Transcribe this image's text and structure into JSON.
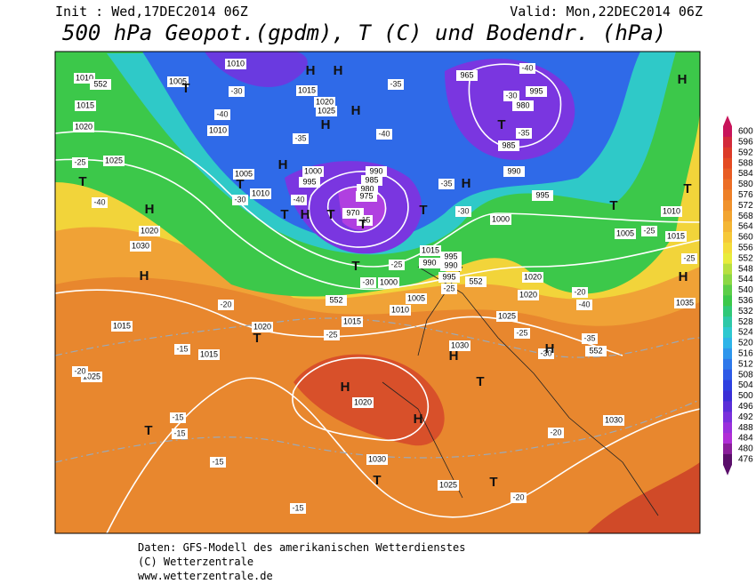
{
  "header": {
    "init": "Init : Wed,17DEC2014 06Z",
    "valid": "Valid: Mon,22DEC2014 06Z",
    "title": "500 hPa Geopot.(gpdm), T (C) und Bodendr. (hPa)"
  },
  "colorbar": {
    "labels": [
      "600",
      "596",
      "592",
      "588",
      "584",
      "580",
      "576",
      "572",
      "568",
      "564",
      "560",
      "556",
      "552",
      "548",
      "544",
      "540",
      "536",
      "532",
      "528",
      "524",
      "520",
      "516",
      "512",
      "508",
      "504",
      "500",
      "496",
      "492",
      "488",
      "484",
      "480",
      "476"
    ]
  },
  "map_labels": [
    "1010",
    "1005",
    "1010",
    "1015",
    "1020",
    "1025",
    "1010",
    "1015",
    "1020",
    "1025",
    "1030",
    "1005",
    "1010",
    "1000",
    "995",
    "990",
    "985",
    "980",
    "975",
    "970",
    "965",
    "995",
    "980",
    "985",
    "990",
    "995",
    "1000",
    "1005",
    "1010",
    "1015",
    "1015",
    "990",
    "995",
    "990",
    "995",
    "1000",
    "1005",
    "1010",
    "1015",
    "1020",
    "1020",
    "1025",
    "1030",
    "1035",
    "1020",
    "1015",
    "1015",
    "1025",
    "1020",
    "1030",
    "1025",
    "1030",
    "1020",
    "552",
    "552",
    "552",
    "552",
    "-30",
    "-40",
    "-35",
    "-40",
    "-35",
    "-40",
    "-30",
    "-35",
    "-40",
    "-30",
    "-40",
    "-35",
    "-30",
    "-25",
    "-25",
    "-25",
    "-30",
    "-25",
    "-20",
    "-40",
    "-35",
    "-30",
    "-25",
    "-20",
    "-25",
    "-15",
    "-20",
    "-15",
    "-15",
    "-15",
    "-15",
    "-20",
    "-20",
    "-15",
    "-25",
    "H",
    "H",
    "H",
    "H",
    "H",
    "H",
    "H",
    "H",
    "H",
    "H",
    "H",
    "H",
    "H",
    "H",
    "H",
    "T",
    "T",
    "T",
    "T",
    "T",
    "T",
    "T",
    "T",
    "T",
    "T",
    "T",
    "T",
    "T",
    "T",
    "T",
    "T"
  ],
  "footer": {
    "source": "Daten: GFS-Modell des amerikanischen Wetterdienstes",
    "copyright": "(C) Wetterzentrale",
    "url": "www.wetterzentrale.de"
  }
}
